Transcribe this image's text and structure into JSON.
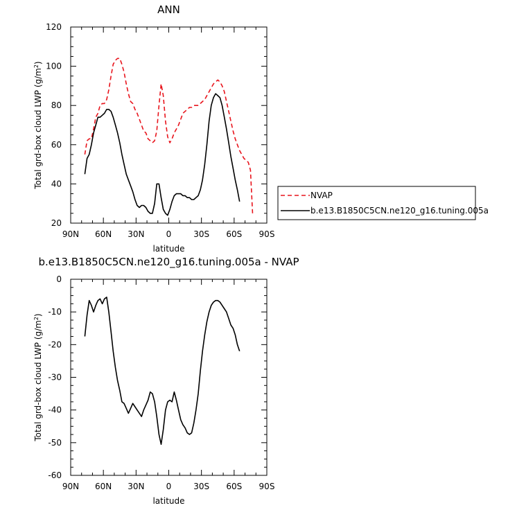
{
  "chart_data": [
    {
      "type": "line",
      "title": "ANN",
      "xlabel": "latitude",
      "ylabel": "Total grd-box cloud LWP (g/m²)",
      "ylabel_parts": [
        "Total grd-box cloud LWP (g/m",
        "2",
        ")"
      ],
      "x_reversed": true,
      "xlim": [
        90,
        -90
      ],
      "ylim": [
        20,
        120
      ],
      "x_ticks": [
        {
          "value": 90,
          "label": "90N"
        },
        {
          "value": 60,
          "label": "60N"
        },
        {
          "value": 30,
          "label": "30N"
        },
        {
          "value": 0,
          "label": "0"
        },
        {
          "value": -30,
          "label": "30S"
        },
        {
          "value": -60,
          "label": "60S"
        },
        {
          "value": -90,
          "label": "90S"
        }
      ],
      "y_ticks": [
        {
          "value": 20,
          "label": "20"
        },
        {
          "value": 40,
          "label": "40"
        },
        {
          "value": 60,
          "label": "60"
        },
        {
          "value": 80,
          "label": "80"
        },
        {
          "value": 100,
          "label": "100"
        },
        {
          "value": 120,
          "label": "120"
        }
      ],
      "legend_position": "right",
      "series": [
        {
          "name": "NVAP",
          "color": "#e8141c",
          "dash": true,
          "x": [
            77,
            75,
            73,
            71,
            69,
            67,
            65,
            63,
            61,
            59,
            57,
            55,
            53,
            51,
            49,
            47,
            45,
            43,
            41,
            39,
            37,
            35,
            33,
            31,
            29,
            27,
            25,
            23,
            21,
            19,
            17,
            15,
            13,
            11,
            9,
            7,
            5,
            3,
            1,
            -1,
            -3,
            -5,
            -7,
            -9,
            -11,
            -13,
            -15,
            -17,
            -19,
            -21,
            -23,
            -25,
            -27,
            -29,
            -31,
            -33,
            -35,
            -37,
            -39,
            -41,
            -43,
            -45,
            -47,
            -49,
            -51,
            -53,
            -55,
            -57,
            -59,
            -61,
            -63,
            -65,
            -67,
            -69,
            -71,
            -73,
            -75,
            -77
          ],
          "y": [
            55,
            62,
            63,
            63,
            68,
            74,
            76,
            80,
            81,
            81,
            83,
            88,
            95,
            101,
            103,
            104,
            104,
            101,
            97,
            91,
            86,
            82,
            81,
            78,
            76,
            73,
            70,
            67,
            66,
            63,
            62,
            61,
            62,
            67,
            80,
            91,
            85,
            72,
            64,
            61,
            63,
            66,
            68,
            70,
            73,
            76,
            77,
            78,
            79,
            79,
            80,
            80,
            80,
            81,
            82,
            83,
            85,
            87,
            89,
            91,
            92,
            93,
            92,
            90,
            87,
            82,
            77,
            72,
            67,
            63,
            60,
            57,
            55,
            53,
            52,
            51,
            47,
            24
          ]
        },
        {
          "name": "b.e13.B1850C5CN.ne120_g16.tuning.005a",
          "color": "#000000",
          "dash": false,
          "x": [
            77,
            75,
            73,
            71,
            69,
            67,
            65,
            63,
            61,
            59,
            57,
            55,
            53,
            51,
            49,
            47,
            45,
            43,
            41,
            39,
            37,
            35,
            33,
            31,
            29,
            27,
            25,
            23,
            21,
            19,
            17,
            15,
            13,
            11,
            9,
            7,
            5,
            3,
            1,
            -1,
            -3,
            -5,
            -7,
            -9,
            -11,
            -13,
            -15,
            -17,
            -19,
            -21,
            -23,
            -25,
            -27,
            -29,
            -31,
            -33,
            -35,
            -37,
            -39,
            -41,
            -43,
            -45,
            -47,
            -49,
            -51,
            -53,
            -55,
            -57,
            -59,
            -61,
            -63,
            -65
          ],
          "y": [
            45,
            53,
            55,
            60,
            66,
            70,
            74,
            74,
            75,
            76,
            78,
            78,
            77,
            74,
            70,
            66,
            61,
            55,
            50,
            45,
            42,
            39,
            36,
            32,
            29,
            28,
            29,
            29,
            28,
            26,
            25,
            25,
            30,
            40,
            40,
            33,
            27,
            25,
            24,
            27,
            31,
            34,
            35,
            35,
            35,
            34,
            34,
            33,
            33,
            32,
            32,
            33,
            34,
            37,
            42,
            50,
            60,
            72,
            80,
            84,
            86,
            85,
            84,
            80,
            74,
            68,
            61,
            54,
            48,
            42,
            37,
            31
          ]
        }
      ]
    },
    {
      "type": "line",
      "title": "b.e13.B1850C5CN.ne120_g16.tuning.005a - NVAP",
      "xlabel": "latitude",
      "ylabel": "Total grd-box cloud LWP (g/m²)",
      "ylabel_parts": [
        "Total grd-box cloud LWP (g/m",
        "2",
        ")"
      ],
      "x_reversed": true,
      "xlim": [
        90,
        -90
      ],
      "ylim": [
        -60,
        0
      ],
      "x_ticks": [
        {
          "value": 90,
          "label": "90N"
        },
        {
          "value": 60,
          "label": "60N"
        },
        {
          "value": 30,
          "label": "30N"
        },
        {
          "value": 0,
          "label": "0"
        },
        {
          "value": -30,
          "label": "30S"
        },
        {
          "value": -60,
          "label": "60S"
        },
        {
          "value": -90,
          "label": "90S"
        }
      ],
      "y_ticks": [
        {
          "value": -60,
          "label": "-60"
        },
        {
          "value": -50,
          "label": "-50"
        },
        {
          "value": -40,
          "label": "-40"
        },
        {
          "value": -30,
          "label": "-30"
        },
        {
          "value": -20,
          "label": "-20"
        },
        {
          "value": -10,
          "label": "-10"
        },
        {
          "value": 0,
          "label": "0"
        }
      ],
      "series": [
        {
          "name": "",
          "color": "#000000",
          "dash": false,
          "x": [
            77,
            75,
            73,
            71,
            69,
            67,
            65,
            63,
            61,
            59,
            57,
            55,
            53,
            51,
            49,
            47,
            45,
            43,
            41,
            39,
            37,
            35,
            33,
            31,
            29,
            27,
            25,
            23,
            21,
            19,
            17,
            15,
            13,
            11,
            9,
            7,
            5,
            3,
            1,
            -1,
            -3,
            -5,
            -7,
            -9,
            -11,
            -13,
            -15,
            -17,
            -19,
            -21,
            -23,
            -25,
            -27,
            -29,
            -31,
            -33,
            -35,
            -37,
            -39,
            -41,
            -43,
            -45,
            -47,
            -49,
            -51,
            -53,
            -55,
            -57,
            -59,
            -61,
            -63,
            -65
          ],
          "y": [
            -17.5,
            -11,
            -6.5,
            -8,
            -10,
            -8,
            -6.5,
            -6,
            -7.5,
            -6,
            -5.5,
            -10,
            -16,
            -22,
            -27,
            -31,
            -34,
            -37.5,
            -38,
            -39.5,
            -41,
            -39.5,
            -38,
            -39,
            -40,
            -41,
            -42,
            -40,
            -38.5,
            -37,
            -34.5,
            -35,
            -37.5,
            -42,
            -47.5,
            -50.5,
            -46,
            -40,
            -37.5,
            -37,
            -37.5,
            -34.5,
            -37,
            -40,
            -43,
            -44.5,
            -45.5,
            -47,
            -47.5,
            -47,
            -44,
            -40,
            -35,
            -28,
            -22,
            -17,
            -13,
            -10,
            -8,
            -7,
            -6.5,
            -6.5,
            -7,
            -8,
            -9,
            -10,
            -12,
            -14,
            -15,
            -17,
            -20,
            -22
          ]
        }
      ]
    }
  ]
}
